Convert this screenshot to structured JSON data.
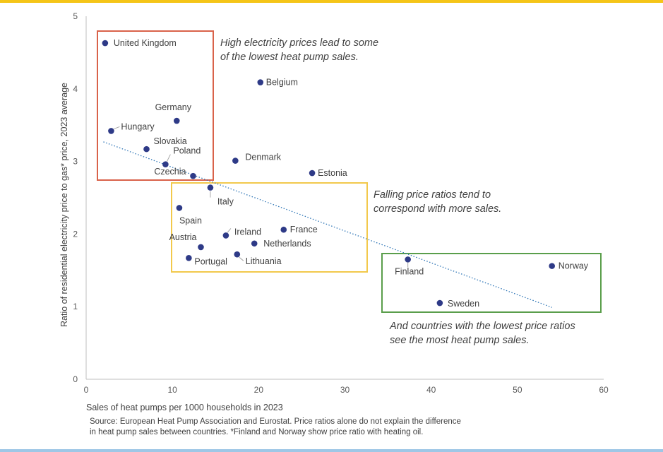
{
  "chart_data": {
    "type": "scatter",
    "title": "",
    "xlabel": "Sales of heat pumps per 1000 households in 2023",
    "ylabel": "Ratio of residential electricity price to gas* price, 2023 average",
    "xlim": [
      0,
      60
    ],
    "ylim": [
      0,
      5
    ],
    "x_ticks": [
      0,
      10,
      20,
      30,
      40,
      50,
      60
    ],
    "y_ticks": [
      0,
      1,
      2,
      3,
      4,
      5
    ],
    "grid": false,
    "point_color": "#2e3a87",
    "trendline": {
      "x": [
        2,
        54
      ],
      "y": [
        3.27,
        0.99
      ],
      "color": "#2e75b6"
    },
    "points": [
      {
        "label": "United Kingdom",
        "x": 2.2,
        "y": 4.63
      },
      {
        "label": "Hungary",
        "x": 2.9,
        "y": 3.42
      },
      {
        "label": "Germany",
        "x": 10.5,
        "y": 3.56
      },
      {
        "label": "Slovakia",
        "x": 7.0,
        "y": 3.17
      },
      {
        "label": "Poland",
        "x": 9.2,
        "y": 2.96
      },
      {
        "label": "Czechia",
        "x": 12.4,
        "y": 2.8
      },
      {
        "label": "Italy",
        "x": 14.4,
        "y": 2.64
      },
      {
        "label": "Belgium",
        "x": 20.2,
        "y": 4.09
      },
      {
        "label": "Denmark",
        "x": 17.3,
        "y": 3.01
      },
      {
        "label": "Estonia",
        "x": 26.2,
        "y": 2.84
      },
      {
        "label": "Spain",
        "x": 10.8,
        "y": 2.36
      },
      {
        "label": "Ireland",
        "x": 16.2,
        "y": 1.98
      },
      {
        "label": "France",
        "x": 22.9,
        "y": 2.06
      },
      {
        "label": "Austria",
        "x": 13.3,
        "y": 1.82
      },
      {
        "label": "Netherlands",
        "x": 19.5,
        "y": 1.87
      },
      {
        "label": "Portugal",
        "x": 11.9,
        "y": 1.67
      },
      {
        "label": "Lithuania",
        "x": 17.5,
        "y": 1.72
      },
      {
        "label": "Finland",
        "x": 37.3,
        "y": 1.65
      },
      {
        "label": "Norway",
        "x": 54.0,
        "y": 1.56
      },
      {
        "label": "Sweden",
        "x": 41.0,
        "y": 1.05
      }
    ],
    "annotations": [
      {
        "lines": [
          "High electricity prices lead to some",
          "of the lowest heat pump sales."
        ],
        "color": "#d9624a"
      },
      {
        "lines": [
          "Falling price ratios tend to",
          "correspond with more sales."
        ],
        "color": "#f2c94c"
      },
      {
        "lines": [
          "And countries with the lowest price ratios",
          "see the most heat pump sales."
        ],
        "color": "#5a9e4b"
      }
    ]
  },
  "source": {
    "line1": "Source: European Heat Pump Association and Eurostat. Price ratios alone do not explain the difference",
    "line2": "in heat pump sales between countries. *Finland and Norway show price ratio with heating oil."
  }
}
